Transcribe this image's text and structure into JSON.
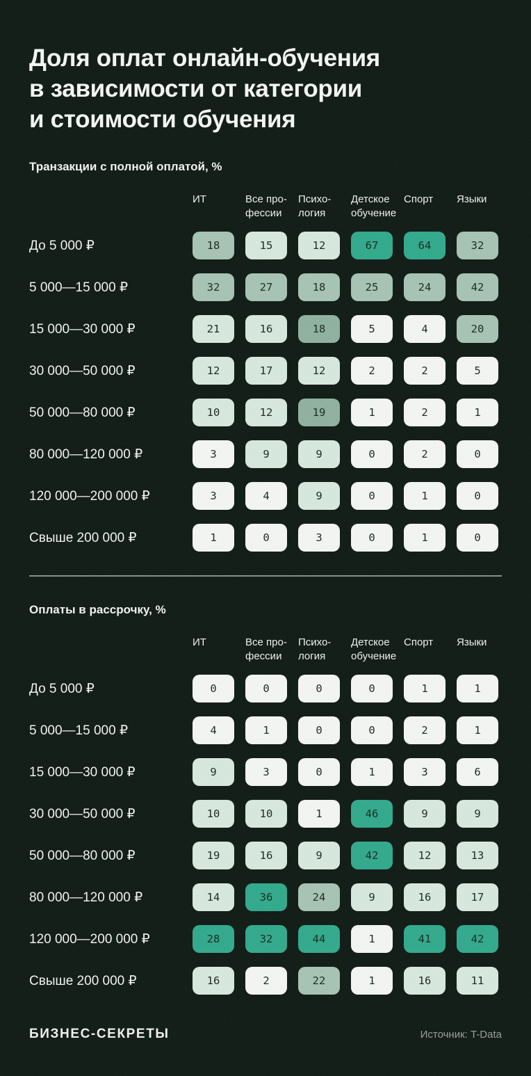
{
  "page": {
    "title_lines": [
      "Доля оплат онлайн-обучения",
      "в зависимости от категории",
      "и стоимости обучения"
    ],
    "footer": {
      "brand": "БИЗНЕС-СЕКРЕТЫ",
      "source": "Источник: T-Data"
    }
  },
  "palette": {
    "background": "#101b15",
    "heading_text": "#f4f6f4",
    "cell_text": "#1a2a21",
    "muted_text": "#99a09b",
    "divider": "#878e8a",
    "cell_levels": [
      "#f3f5f3",
      "#d7e8de",
      "#a6c3b4",
      "#8fb1a0",
      "#31a98c"
    ]
  },
  "chart_data": [
    {
      "type": "heatmap",
      "title": "Транзакции с полной оплатой, %",
      "columns": [
        "ИТ",
        "Все про-\nфессии",
        "Психо-\nлогия",
        "Детское\nобучение",
        "Спорт",
        "Языки"
      ],
      "rows": [
        "До 5 000 ₽",
        "5 000—15 000 ₽",
        "15 000—30 000 ₽",
        "30 000—50 000 ₽",
        "50 000—80 000 ₽",
        "80 000—120 000 ₽",
        "120 000—200 000 ₽",
        "Свыше 200 000 ₽"
      ],
      "values": [
        [
          18,
          15,
          12,
          67,
          64,
          32
        ],
        [
          32,
          27,
          18,
          25,
          24,
          42
        ],
        [
          21,
          16,
          18,
          5,
          4,
          20
        ],
        [
          12,
          17,
          12,
          2,
          2,
          5
        ],
        [
          10,
          12,
          19,
          1,
          2,
          1
        ],
        [
          3,
          9,
          9,
          0,
          2,
          0
        ],
        [
          3,
          4,
          9,
          0,
          1,
          0
        ],
        [
          1,
          0,
          3,
          0,
          1,
          0
        ]
      ],
      "shades": [
        [
          2,
          1,
          1,
          4,
          4,
          2
        ],
        [
          2,
          2,
          2,
          2,
          2,
          2
        ],
        [
          1,
          1,
          3,
          0,
          0,
          2
        ],
        [
          1,
          1,
          1,
          0,
          0,
          0
        ],
        [
          1,
          1,
          3,
          0,
          0,
          0
        ],
        [
          0,
          1,
          1,
          0,
          0,
          0
        ],
        [
          0,
          0,
          1,
          0,
          0,
          0
        ],
        [
          0,
          0,
          0,
          0,
          0,
          0
        ]
      ]
    },
    {
      "type": "heatmap",
      "title": "Оплаты в рассрочку, %",
      "columns": [
        "ИТ",
        "Все про-\nфессии",
        "Психо-\nлогия",
        "Детское\nобучение",
        "Спорт",
        "Языки"
      ],
      "rows": [
        "До 5 000 ₽",
        "5 000—15 000 ₽",
        "15 000—30 000 ₽",
        "30 000—50 000 ₽",
        "50 000—80 000 ₽",
        "80 000—120 000 ₽",
        "120 000—200 000 ₽",
        "Свыше 200 000 ₽"
      ],
      "values": [
        [
          0,
          0,
          0,
          0,
          1,
          1
        ],
        [
          4,
          1,
          0,
          0,
          2,
          1
        ],
        [
          9,
          3,
          0,
          1,
          3,
          6
        ],
        [
          10,
          10,
          1,
          46,
          9,
          9
        ],
        [
          19,
          16,
          9,
          42,
          12,
          13
        ],
        [
          14,
          36,
          24,
          9,
          16,
          17
        ],
        [
          28,
          32,
          44,
          1,
          41,
          42
        ],
        [
          16,
          2,
          22,
          1,
          16,
          11
        ]
      ],
      "shades": [
        [
          0,
          0,
          0,
          0,
          0,
          0
        ],
        [
          0,
          0,
          0,
          0,
          0,
          0
        ],
        [
          1,
          0,
          0,
          0,
          0,
          0
        ],
        [
          1,
          1,
          0,
          4,
          1,
          1
        ],
        [
          1,
          1,
          1,
          4,
          1,
          1
        ],
        [
          1,
          4,
          2,
          1,
          1,
          1
        ],
        [
          4,
          4,
          4,
          0,
          4,
          4
        ],
        [
          1,
          0,
          2,
          0,
          1,
          1
        ]
      ]
    }
  ]
}
